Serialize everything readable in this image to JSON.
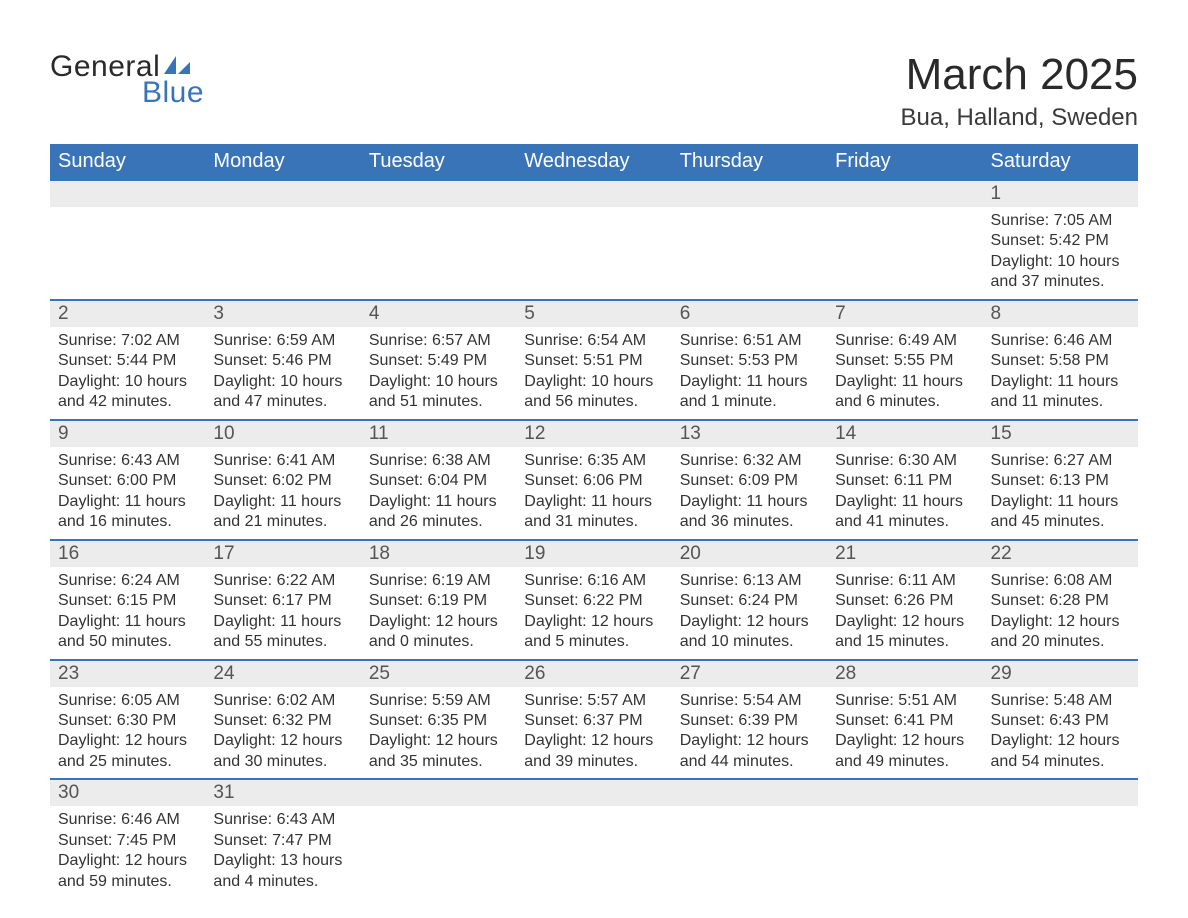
{
  "logo": {
    "text_top": "General",
    "text_bottom": "Blue",
    "icon_color": "#3a74b8",
    "top_color": "#2a2a2a",
    "bottom_color": "#3a74b8"
  },
  "header": {
    "month_title": "March 2025",
    "location": "Bua, Halland, Sweden"
  },
  "colors": {
    "header_bg": "#3a74b8",
    "header_text": "#ffffff",
    "daynum_bg": "#ececec",
    "daynum_text": "#555555",
    "body_text": "#333333",
    "row_border": "#3a74b8",
    "page_bg": "#ffffff"
  },
  "typography": {
    "month_title_fontsize": 44,
    "location_fontsize": 24,
    "weekday_fontsize": 20,
    "daynum_fontsize": 19,
    "body_fontsize": 16,
    "font_family": "Arial"
  },
  "calendar": {
    "weekdays": [
      "Sunday",
      "Monday",
      "Tuesday",
      "Wednesday",
      "Thursday",
      "Friday",
      "Saturday"
    ],
    "weeks": [
      [
        {
          "day": "",
          "sunrise": "",
          "sunset": "",
          "daylight1": "",
          "daylight2": ""
        },
        {
          "day": "",
          "sunrise": "",
          "sunset": "",
          "daylight1": "",
          "daylight2": ""
        },
        {
          "day": "",
          "sunrise": "",
          "sunset": "",
          "daylight1": "",
          "daylight2": ""
        },
        {
          "day": "",
          "sunrise": "",
          "sunset": "",
          "daylight1": "",
          "daylight2": ""
        },
        {
          "day": "",
          "sunrise": "",
          "sunset": "",
          "daylight1": "",
          "daylight2": ""
        },
        {
          "day": "",
          "sunrise": "",
          "sunset": "",
          "daylight1": "",
          "daylight2": ""
        },
        {
          "day": "1",
          "sunrise": "Sunrise: 7:05 AM",
          "sunset": "Sunset: 5:42 PM",
          "daylight1": "Daylight: 10 hours",
          "daylight2": "and 37 minutes."
        }
      ],
      [
        {
          "day": "2",
          "sunrise": "Sunrise: 7:02 AM",
          "sunset": "Sunset: 5:44 PM",
          "daylight1": "Daylight: 10 hours",
          "daylight2": "and 42 minutes."
        },
        {
          "day": "3",
          "sunrise": "Sunrise: 6:59 AM",
          "sunset": "Sunset: 5:46 PM",
          "daylight1": "Daylight: 10 hours",
          "daylight2": "and 47 minutes."
        },
        {
          "day": "4",
          "sunrise": "Sunrise: 6:57 AM",
          "sunset": "Sunset: 5:49 PM",
          "daylight1": "Daylight: 10 hours",
          "daylight2": "and 51 minutes."
        },
        {
          "day": "5",
          "sunrise": "Sunrise: 6:54 AM",
          "sunset": "Sunset: 5:51 PM",
          "daylight1": "Daylight: 10 hours",
          "daylight2": "and 56 minutes."
        },
        {
          "day": "6",
          "sunrise": "Sunrise: 6:51 AM",
          "sunset": "Sunset: 5:53 PM",
          "daylight1": "Daylight: 11 hours",
          "daylight2": "and 1 minute."
        },
        {
          "day": "7",
          "sunrise": "Sunrise: 6:49 AM",
          "sunset": "Sunset: 5:55 PM",
          "daylight1": "Daylight: 11 hours",
          "daylight2": "and 6 minutes."
        },
        {
          "day": "8",
          "sunrise": "Sunrise: 6:46 AM",
          "sunset": "Sunset: 5:58 PM",
          "daylight1": "Daylight: 11 hours",
          "daylight2": "and 11 minutes."
        }
      ],
      [
        {
          "day": "9",
          "sunrise": "Sunrise: 6:43 AM",
          "sunset": "Sunset: 6:00 PM",
          "daylight1": "Daylight: 11 hours",
          "daylight2": "and 16 minutes."
        },
        {
          "day": "10",
          "sunrise": "Sunrise: 6:41 AM",
          "sunset": "Sunset: 6:02 PM",
          "daylight1": "Daylight: 11 hours",
          "daylight2": "and 21 minutes."
        },
        {
          "day": "11",
          "sunrise": "Sunrise: 6:38 AM",
          "sunset": "Sunset: 6:04 PM",
          "daylight1": "Daylight: 11 hours",
          "daylight2": "and 26 minutes."
        },
        {
          "day": "12",
          "sunrise": "Sunrise: 6:35 AM",
          "sunset": "Sunset: 6:06 PM",
          "daylight1": "Daylight: 11 hours",
          "daylight2": "and 31 minutes."
        },
        {
          "day": "13",
          "sunrise": "Sunrise: 6:32 AM",
          "sunset": "Sunset: 6:09 PM",
          "daylight1": "Daylight: 11 hours",
          "daylight2": "and 36 minutes."
        },
        {
          "day": "14",
          "sunrise": "Sunrise: 6:30 AM",
          "sunset": "Sunset: 6:11 PM",
          "daylight1": "Daylight: 11 hours",
          "daylight2": "and 41 minutes."
        },
        {
          "day": "15",
          "sunrise": "Sunrise: 6:27 AM",
          "sunset": "Sunset: 6:13 PM",
          "daylight1": "Daylight: 11 hours",
          "daylight2": "and 45 minutes."
        }
      ],
      [
        {
          "day": "16",
          "sunrise": "Sunrise: 6:24 AM",
          "sunset": "Sunset: 6:15 PM",
          "daylight1": "Daylight: 11 hours",
          "daylight2": "and 50 minutes."
        },
        {
          "day": "17",
          "sunrise": "Sunrise: 6:22 AM",
          "sunset": "Sunset: 6:17 PM",
          "daylight1": "Daylight: 11 hours",
          "daylight2": "and 55 minutes."
        },
        {
          "day": "18",
          "sunrise": "Sunrise: 6:19 AM",
          "sunset": "Sunset: 6:19 PM",
          "daylight1": "Daylight: 12 hours",
          "daylight2": "and 0 minutes."
        },
        {
          "day": "19",
          "sunrise": "Sunrise: 6:16 AM",
          "sunset": "Sunset: 6:22 PM",
          "daylight1": "Daylight: 12 hours",
          "daylight2": "and 5 minutes."
        },
        {
          "day": "20",
          "sunrise": "Sunrise: 6:13 AM",
          "sunset": "Sunset: 6:24 PM",
          "daylight1": "Daylight: 12 hours",
          "daylight2": "and 10 minutes."
        },
        {
          "day": "21",
          "sunrise": "Sunrise: 6:11 AM",
          "sunset": "Sunset: 6:26 PM",
          "daylight1": "Daylight: 12 hours",
          "daylight2": "and 15 minutes."
        },
        {
          "day": "22",
          "sunrise": "Sunrise: 6:08 AM",
          "sunset": "Sunset: 6:28 PM",
          "daylight1": "Daylight: 12 hours",
          "daylight2": "and 20 minutes."
        }
      ],
      [
        {
          "day": "23",
          "sunrise": "Sunrise: 6:05 AM",
          "sunset": "Sunset: 6:30 PM",
          "daylight1": "Daylight: 12 hours",
          "daylight2": "and 25 minutes."
        },
        {
          "day": "24",
          "sunrise": "Sunrise: 6:02 AM",
          "sunset": "Sunset: 6:32 PM",
          "daylight1": "Daylight: 12 hours",
          "daylight2": "and 30 minutes."
        },
        {
          "day": "25",
          "sunrise": "Sunrise: 5:59 AM",
          "sunset": "Sunset: 6:35 PM",
          "daylight1": "Daylight: 12 hours",
          "daylight2": "and 35 minutes."
        },
        {
          "day": "26",
          "sunrise": "Sunrise: 5:57 AM",
          "sunset": "Sunset: 6:37 PM",
          "daylight1": "Daylight: 12 hours",
          "daylight2": "and 39 minutes."
        },
        {
          "day": "27",
          "sunrise": "Sunrise: 5:54 AM",
          "sunset": "Sunset: 6:39 PM",
          "daylight1": "Daylight: 12 hours",
          "daylight2": "and 44 minutes."
        },
        {
          "day": "28",
          "sunrise": "Sunrise: 5:51 AM",
          "sunset": "Sunset: 6:41 PM",
          "daylight1": "Daylight: 12 hours",
          "daylight2": "and 49 minutes."
        },
        {
          "day": "29",
          "sunrise": "Sunrise: 5:48 AM",
          "sunset": "Sunset: 6:43 PM",
          "daylight1": "Daylight: 12 hours",
          "daylight2": "and 54 minutes."
        }
      ],
      [
        {
          "day": "30",
          "sunrise": "Sunrise: 6:46 AM",
          "sunset": "Sunset: 7:45 PM",
          "daylight1": "Daylight: 12 hours",
          "daylight2": "and 59 minutes."
        },
        {
          "day": "31",
          "sunrise": "Sunrise: 6:43 AM",
          "sunset": "Sunset: 7:47 PM",
          "daylight1": "Daylight: 13 hours",
          "daylight2": "and 4 minutes."
        },
        {
          "day": "",
          "sunrise": "",
          "sunset": "",
          "daylight1": "",
          "daylight2": ""
        },
        {
          "day": "",
          "sunrise": "",
          "sunset": "",
          "daylight1": "",
          "daylight2": ""
        },
        {
          "day": "",
          "sunrise": "",
          "sunset": "",
          "daylight1": "",
          "daylight2": ""
        },
        {
          "day": "",
          "sunrise": "",
          "sunset": "",
          "daylight1": "",
          "daylight2": ""
        },
        {
          "day": "",
          "sunrise": "",
          "sunset": "",
          "daylight1": "",
          "daylight2": ""
        }
      ]
    ]
  }
}
